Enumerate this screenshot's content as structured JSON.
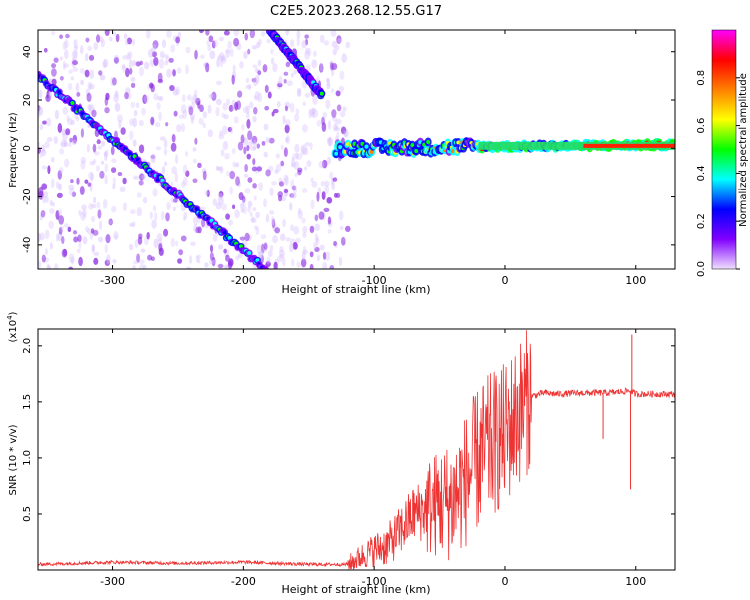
{
  "figure": {
    "title": "C2E5.2023.268.12.55.G17"
  },
  "chart_data": [
    {
      "type": "heatmap",
      "xlabel": "Height of straight line (km)",
      "ylabel": "Frequency (Hz)",
      "xlim": [
        -357,
        130
      ],
      "ylim": [
        -50,
        49
      ],
      "xticks": [
        -300,
        -200,
        -100,
        0,
        100
      ],
      "yticks": [
        -40,
        -20,
        0,
        20,
        40
      ],
      "grid": false,
      "colorbar": {
        "label": "Normalized spectral amplitude",
        "range": [
          0,
          1
        ],
        "ticks": [
          0.0,
          0.2,
          0.4,
          0.6,
          0.8
        ],
        "colormap": [
          "#f0e0ff",
          "#8000ff",
          "#0000ff",
          "#00ffff",
          "#00ff00",
          "#ffff00",
          "#ff8000",
          "#ff0000",
          "#ff00ff"
        ]
      },
      "features": [
        {
          "name": "",
          "x": [
            -357,
            -183
          ],
          "y": [
            30,
            -50
          ],
          "amplitude": 0.45
        },
        {
          "name": "",
          "x": [
            -180,
            -140
          ],
          "y": [
            49,
            22
          ],
          "amplitude": 0.45
        },
        {
          "name": "",
          "x": [
            -130,
            130
          ],
          "y": [
            0,
            1.5
          ],
          "amplitude": 0.8
        }
      ]
    },
    {
      "type": "line",
      "xlabel": "Height of straight line (km)",
      "ylabel": "SNR (10 * v/v)",
      "ylabel_multiplier": "(x10",
      "ylabel_exponent": "4",
      "ylabel_close": ")",
      "xlim": [
        -357,
        130
      ],
      "ylim": [
        0,
        2.15
      ],
      "xticks": [
        -300,
        -200,
        -100,
        0,
        100
      ],
      "yticks": [
        0.5,
        1.0,
        1.5,
        2.0
      ],
      "series_color": "#ee3333",
      "series": [
        {
          "name": "",
          "x": [
            -357,
            -300,
            -250,
            -200,
            -150,
            -120,
            -110,
            -100,
            -90,
            -80,
            -70,
            -60,
            -50,
            -40,
            -30,
            -20,
            -10,
            0,
            10,
            20,
            30,
            40,
            60,
            80,
            95,
            100,
            110,
            130
          ],
          "y": [
            0.05,
            0.07,
            0.06,
            0.07,
            0.05,
            0.05,
            0.12,
            0.18,
            0.22,
            0.35,
            0.5,
            0.55,
            0.6,
            0.62,
            0.8,
            1.0,
            1.12,
            1.2,
            1.4,
            1.55,
            1.58,
            1.57,
            1.58,
            1.58,
            1.6,
            1.57,
            1.57,
            1.57
          ]
        }
      ],
      "spikes": [
        {
          "x": 97,
          "y": 2.1
        },
        {
          "x": 96,
          "y": 0.72
        },
        {
          "x": 75,
          "y": 1.17
        },
        {
          "x": -7,
          "y": 1.62
        }
      ]
    }
  ]
}
